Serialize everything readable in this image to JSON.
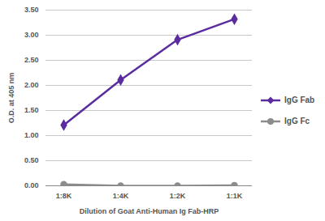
{
  "chart_data": {
    "type": "line",
    "x_label": "Dilution of Goat Anti-Human Ig Fab-HRP",
    "y_label": "O.D. at 405 nm",
    "categories": [
      "1:8K",
      "1:4K",
      "1:2K",
      "1:1K"
    ],
    "series": [
      {
        "name": "IgG Fab",
        "color": "#5b2ca0",
        "marker": "diamond",
        "values": [
          1.21,
          2.11,
          2.91,
          3.32
        ]
      },
      {
        "name": "IgG Fc",
        "color": "#8c8c8c",
        "marker": "circle",
        "values": [
          0.03,
          0.0,
          0.0,
          0.01
        ]
      }
    ],
    "ylim": [
      0,
      3.5
    ],
    "yticks": [
      {
        "value": 0,
        "label": "0.00"
      },
      {
        "value": 0.5,
        "label": "0.50"
      },
      {
        "value": 1,
        "label": "1.00"
      },
      {
        "value": 1.5,
        "label": "1.50"
      },
      {
        "value": 2,
        "label": "2.00"
      },
      {
        "value": 2.5,
        "label": "2.50"
      },
      {
        "value": 3,
        "label": "3.00"
      },
      {
        "value": 3.5,
        "label": "3.50"
      }
    ],
    "grid": true,
    "legend": "right"
  }
}
